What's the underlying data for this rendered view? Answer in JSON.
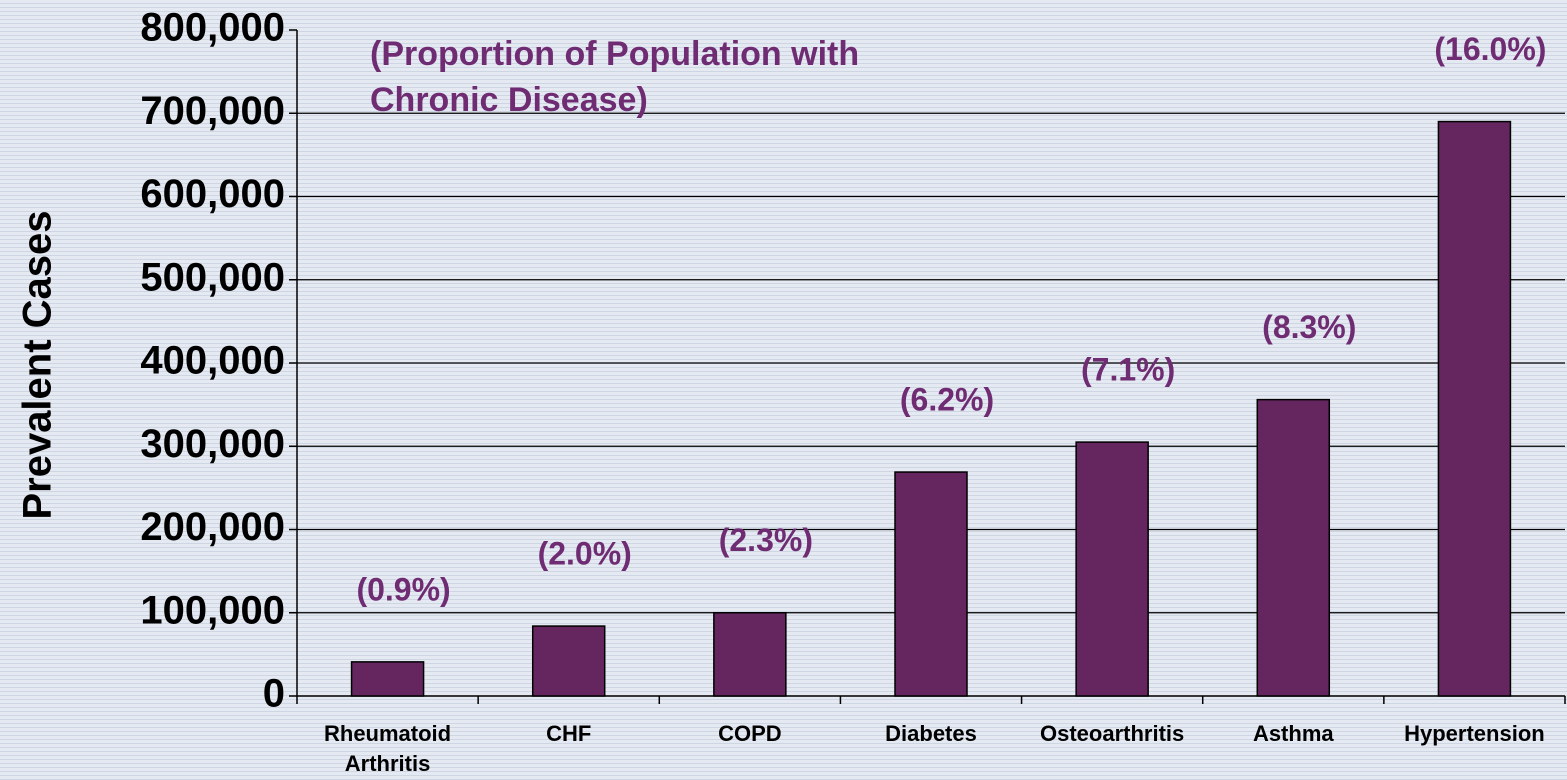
{
  "chart_data": {
    "type": "bar",
    "y_axis_label": "Prevalent Cases",
    "annotation": [
      "(Proportion of Population with",
      "Chronic Disease)"
    ],
    "categories": [
      "Rheumatoid Arthritis",
      "CHF",
      "COPD",
      "Diabetes",
      "Osteoarthritis",
      "Asthma",
      "Hypertension"
    ],
    "values": [
      41000,
      84000,
      100000,
      269000,
      305000,
      356000,
      690000
    ],
    "proportion_labels": [
      "(0.9%)",
      "(2.0%)",
      "(2.3%)",
      "(6.2%)",
      "(7.1%)",
      "(8.3%)",
      "(16.0%)"
    ],
    "color": "#65265f",
    "label_color": "#6f2c73",
    "ylim": [
      0,
      800000
    ],
    "yticks": [
      {
        "value": 0,
        "label": "0"
      },
      {
        "value": 100000,
        "label": "100,000"
      },
      {
        "value": 200000,
        "label": "200,000"
      },
      {
        "value": 300000,
        "label": "300,000"
      },
      {
        "value": 400000,
        "label": "400,000"
      },
      {
        "value": 500000,
        "label": "500,000"
      },
      {
        "value": 600000,
        "label": "600,000"
      },
      {
        "value": 700000,
        "label": "700,000"
      },
      {
        "value": 800000,
        "label": "800,000"
      }
    ],
    "grid": true
  }
}
